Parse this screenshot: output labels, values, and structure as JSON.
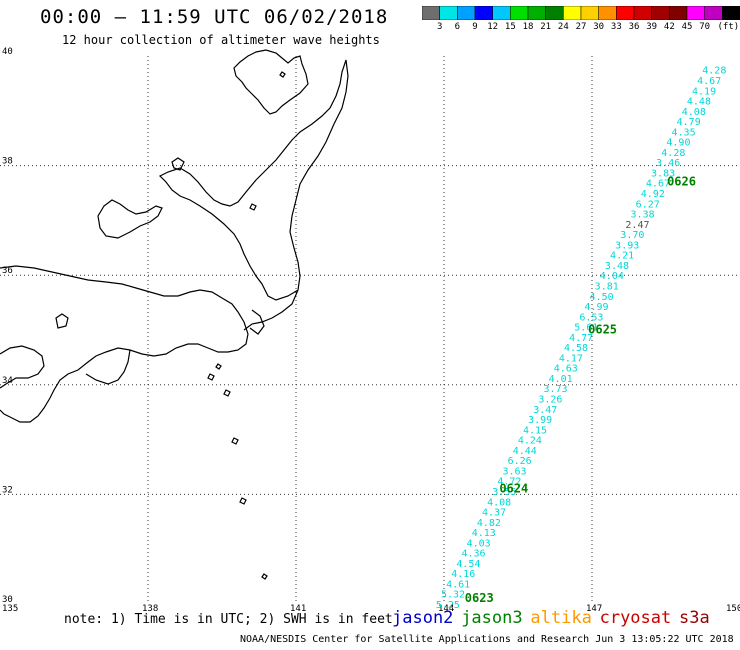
{
  "header": {
    "title": "00:00 – 11:59 UTC 06/02/2018",
    "subtitle": "12 hour collection of altimeter wave heights"
  },
  "scale": {
    "unit": "(ft)",
    "colors": [
      "#6e6e6e",
      "#00e5e5",
      "#00a0ff",
      "#0000ff",
      "#00c8ff",
      "#00e000",
      "#00b000",
      "#008000",
      "#ffff00",
      "#ffd000",
      "#ff9000",
      "#ff0000",
      "#d00000",
      "#a00000",
      "#800000",
      "#ff00ff",
      "#c000c0",
      "#000000"
    ],
    "labels": [
      "3",
      "6",
      "9",
      "12",
      "15",
      "18",
      "21",
      "24",
      "27",
      "30",
      "33",
      "36",
      "39",
      "42",
      "45",
      "70"
    ]
  },
  "axes": {
    "lon_ticks": [
      "135",
      "138",
      "141",
      "144",
      "147",
      "150"
    ],
    "lat_ticks": [
      "40",
      "38",
      "36",
      "34",
      "32",
      "30"
    ]
  },
  "chart_data": {
    "type": "scatter",
    "xlabel": "",
    "ylabel": "",
    "xlim": [
      135,
      150
    ],
    "ylim": [
      30,
      40
    ],
    "series": [
      {
        "name": "jason3",
        "track": [
          [
            144.2,
            30.0
          ],
          [
            149.6,
            39.75
          ]
        ],
        "values": [
          "5.25",
          "5.32",
          "4.61",
          "4.16",
          "4.54",
          "4.36",
          "4.03",
          "4.13",
          "4.82",
          "4.37",
          "4.08",
          "3.55",
          "4.72",
          "3.63",
          "6.26",
          "4.44",
          "4.24",
          "4.15",
          "3.99",
          "3.47",
          "3.26",
          "3.73",
          "4.01",
          "4.63",
          "4.17",
          "4.58",
          "4.77",
          "5.61",
          "6.53",
          "4.99",
          "4.50",
          "3.81",
          "4.04",
          "3.48",
          "4.21",
          "3.93",
          "3.70",
          "2.47",
          "3.38",
          "6.27",
          "4.92",
          "4.67",
          "3.83",
          "3.46",
          "4.28",
          "4.90",
          "4.35",
          "4.79",
          "4.08",
          "4.48",
          "4.19",
          "4.67",
          "4.28"
        ],
        "highlight_index": 37
      }
    ],
    "time_labels": [
      {
        "label": "0623",
        "lon": 144.3,
        "lat": 30.0
      },
      {
        "label": "0624",
        "lon": 145.0,
        "lat": 32.0
      },
      {
        "label": "0625",
        "lon": 146.8,
        "lat": 34.9
      },
      {
        "label": "0626",
        "lon": 148.4,
        "lat": 37.6
      }
    ]
  },
  "footer": {
    "note": "note: 1) Time is in UTC; 2) SWH is in feet",
    "satellites": [
      {
        "name": "jason2",
        "color": "#0000cc"
      },
      {
        "name": "jason3",
        "color": "#008000"
      },
      {
        "name": "altika",
        "color": "#ff9900"
      },
      {
        "name": "cryosat",
        "color": "#cc0000"
      },
      {
        "name": "s3a",
        "color": "#990000"
      }
    ],
    "credit": "NOAA/NESDIS Center for Satellite Applications and Research   Jun  3 13:05:22 UTC 2018"
  }
}
